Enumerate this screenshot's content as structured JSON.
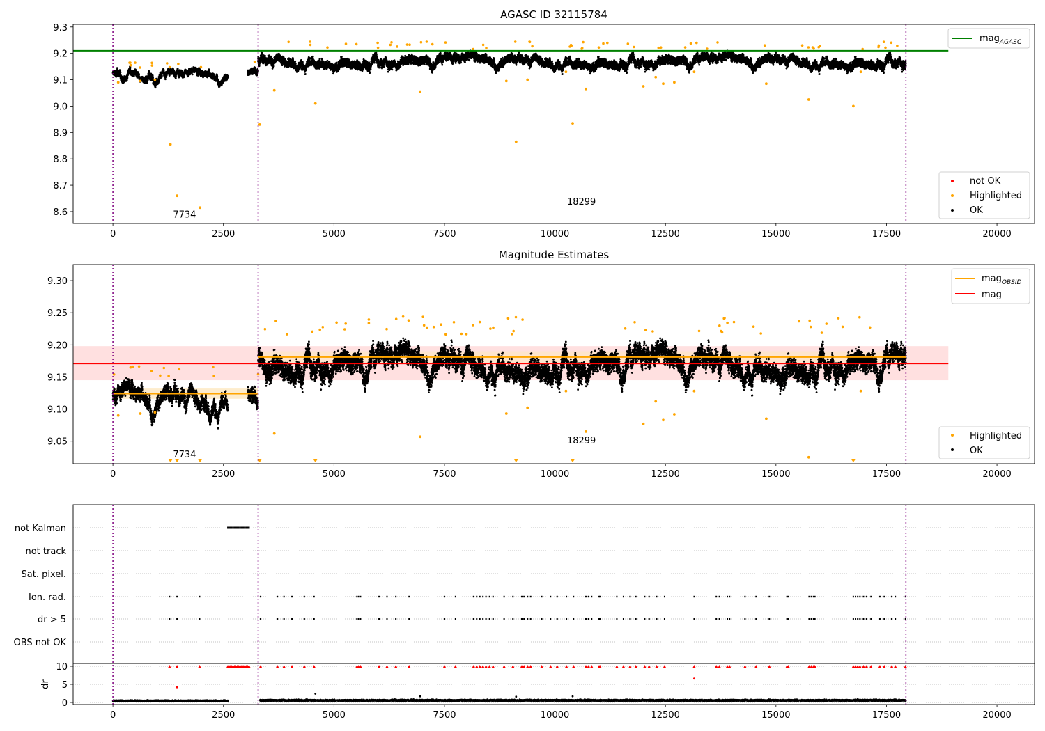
{
  "chart_data": [
    {
      "type": "scatter",
      "title": "AGASC ID 32115784",
      "xlabel": "",
      "ylabel": "",
      "xlim": [
        -900,
        20850
      ],
      "ylim": [
        8.555,
        9.31
      ],
      "xticks": [
        "0",
        "2500",
        "5000",
        "7500",
        "10000",
        "12500",
        "15000",
        "17500",
        "20000"
      ],
      "yticks": [
        "8.6",
        "8.7",
        "8.8",
        "8.9",
        "9.0",
        "9.1",
        "9.2",
        "9.3"
      ],
      "grid": false,
      "vlines": [
        0,
        3285,
        17940
      ],
      "hlines": [
        {
          "name": "mag_AGASC",
          "y": 9.21,
          "color": "#008000",
          "x_range": [
            -900,
            18900
          ]
        }
      ],
      "annotations": [
        {
          "text": "7734",
          "x": 1620,
          "y": 8.59
        },
        {
          "text": "18299",
          "x": 10600,
          "y": 8.64
        }
      ],
      "legend": {
        "top_right": [
          "mag",
          "AGASC"
        ],
        "bottom_right": [
          "not OK",
          "Highlighted",
          "OK"
        ]
      },
      "segments": [
        {
          "x_range": [
            0,
            2600
          ],
          "center": 9.122,
          "spread": 0.012
        },
        {
          "x_range": [
            3050,
            3285
          ],
          "center": 9.128,
          "spread": 0.012
        },
        {
          "x_range": [
            3285,
            17940
          ],
          "center": 9.18,
          "spread": 0.018
        }
      ],
      "outliers": [
        [
          1300,
          8.855
        ],
        [
          1450,
          8.66
        ],
        [
          1970,
          8.615
        ],
        [
          3320,
          8.93
        ],
        [
          3650,
          9.06
        ],
        [
          4580,
          9.01
        ],
        [
          6950,
          9.055
        ],
        [
          8900,
          9.095
        ],
        [
          9120,
          8.865
        ],
        [
          9380,
          9.1
        ],
        [
          10250,
          9.13
        ],
        [
          10400,
          8.935
        ],
        [
          10700,
          9.065
        ],
        [
          12000,
          9.075
        ],
        [
          12280,
          9.11
        ],
        [
          12450,
          9.085
        ],
        [
          12700,
          9.09
        ],
        [
          13150,
          9.13
        ],
        [
          14780,
          9.085
        ],
        [
          15740,
          9.025
        ],
        [
          16750,
          9.0
        ],
        [
          16920,
          9.13
        ],
        [
          120,
          9.09
        ],
        [
          400,
          9.155
        ],
        [
          620,
          9.095
        ],
        [
          950,
          9.1
        ]
      ]
    },
    {
      "type": "scatter",
      "title": "Magnitude Estimates",
      "xlabel": "",
      "ylabel": "",
      "xlim": [
        -900,
        20850
      ],
      "ylim": [
        9.015,
        9.325
      ],
      "xticks": [
        "0",
        "2500",
        "5000",
        "7500",
        "10000",
        "12500",
        "15000",
        "17500",
        "20000"
      ],
      "yticks": [
        "9.05",
        "9.10",
        "9.15",
        "9.20",
        "9.25",
        "9.30"
      ],
      "grid": false,
      "vlines": [
        0,
        3285,
        17940
      ],
      "hlines": [
        {
          "name": "mag_OBSID",
          "y": 9.124,
          "color": "#ffa500",
          "x_range": [
            0,
            3285
          ]
        },
        {
          "name": "mag_OBSID",
          "y": 9.181,
          "color": "#ffa500",
          "x_range": [
            3285,
            17940
          ]
        },
        {
          "name": "mag",
          "y": 9.171,
          "color": "#ff0000",
          "x_range": [
            -900,
            18900
          ],
          "band": [
            9.145,
            9.198
          ]
        }
      ],
      "annotations": [
        {
          "text": "7734",
          "x": 1620,
          "y": 9.03
        },
        {
          "text": "18299",
          "x": 10600,
          "y": 9.052
        }
      ],
      "legend": {
        "top_right": [
          "mag",
          "OBSID",
          "mag"
        ],
        "bottom_right": [
          "Highlighted",
          "OK"
        ]
      },
      "segments": [
        {
          "x_range": [
            0,
            2600
          ],
          "center": 9.124,
          "spread": 0.012
        },
        {
          "x_range": [
            3050,
            3285
          ],
          "center": 9.128,
          "spread": 0.012
        },
        {
          "x_range": [
            3285,
            17940
          ],
          "center": 9.18,
          "spread": 0.018
        }
      ],
      "outliers": [
        [
          120,
          9.09
        ],
        [
          400,
          9.165
        ],
        [
          620,
          9.093
        ],
        [
          950,
          9.095
        ],
        [
          3650,
          9.062
        ],
        [
          6950,
          9.057
        ],
        [
          8900,
          9.093
        ],
        [
          9380,
          9.102
        ],
        [
          10250,
          9.128
        ],
        [
          10700,
          9.065
        ],
        [
          12000,
          9.077
        ],
        [
          12280,
          9.112
        ],
        [
          12450,
          9.083
        ],
        [
          12700,
          9.092
        ],
        [
          13150,
          9.128
        ],
        [
          14780,
          9.085
        ],
        [
          15740,
          9.025
        ],
        [
          16920,
          9.128
        ]
      ],
      "offscale_markers": [
        1300,
        1450,
        1970,
        3320,
        4580,
        9120,
        10400,
        16750
      ]
    },
    {
      "type": "scatter",
      "title": "",
      "xlabel": "",
      "ylabel": "dr",
      "xlim": [
        -900,
        20850
      ],
      "flag_rows": [
        "not Kalman",
        "not track",
        "Sat. pixel.",
        "Ion. rad.",
        "dr > 5",
        "OBS not OK"
      ],
      "dr_yticks": [
        "10",
        "5",
        "0"
      ],
      "dr_ylim": [
        -1,
        11
      ],
      "xticks": [
        "0",
        "2500",
        "5000",
        "7500",
        "10000",
        "12500",
        "15000",
        "17500",
        "20000"
      ],
      "vlines": [
        0,
        3285,
        17940
      ],
      "not_kalman_range": [
        2600,
        3080
      ],
      "ion_rad_times": [
        1280,
        1450,
        1960,
        3340,
        3720,
        3870,
        4050,
        4330,
        4550,
        5520,
        5560,
        5600,
        6020,
        6200,
        6400,
        6700,
        7500,
        7750,
        8160,
        8230,
        8300,
        8370,
        8440,
        8520,
        8600,
        8850,
        9050,
        9250,
        9300,
        9380,
        9450,
        9700,
        9900,
        10050,
        10260,
        10420,
        10700,
        10760,
        10830,
        11000,
        11020,
        11400,
        11550,
        11700,
        11830,
        12030,
        12130,
        12300,
        12480,
        13150,
        13650,
        13720,
        13900,
        13950,
        14300,
        14550,
        14850,
        15250,
        15280,
        15750,
        15800,
        15850,
        15880,
        16750,
        16800,
        16850,
        16900,
        16980,
        17050,
        17150,
        17350,
        17450,
        17620,
        17700,
        17930
      ],
      "dr_outliers": [
        [
          1450,
          4.2
        ],
        [
          4580,
          2.4
        ],
        [
          6950,
          1.7
        ],
        [
          9120,
          1.6
        ],
        [
          10400,
          1.7
        ],
        [
          13150,
          6.6
        ]
      ],
      "dr_segments": [
        {
          "x_range": [
            0,
            2600
          ],
          "center": 0.35,
          "spread": 0.25
        },
        {
          "x_range": [
            3330,
            17940
          ],
          "center": 0.45,
          "spread": 0.3
        }
      ]
    }
  ],
  "colors": {
    "ok": "#000000",
    "highlighted": "#ffa500",
    "not_ok": "#ff0000",
    "obs_boundary": "#800080",
    "agasc_line": "#008000",
    "mag_line": "#ff0000",
    "mag_band": "#ffe0e0",
    "obsid_line": "#ffa500"
  }
}
